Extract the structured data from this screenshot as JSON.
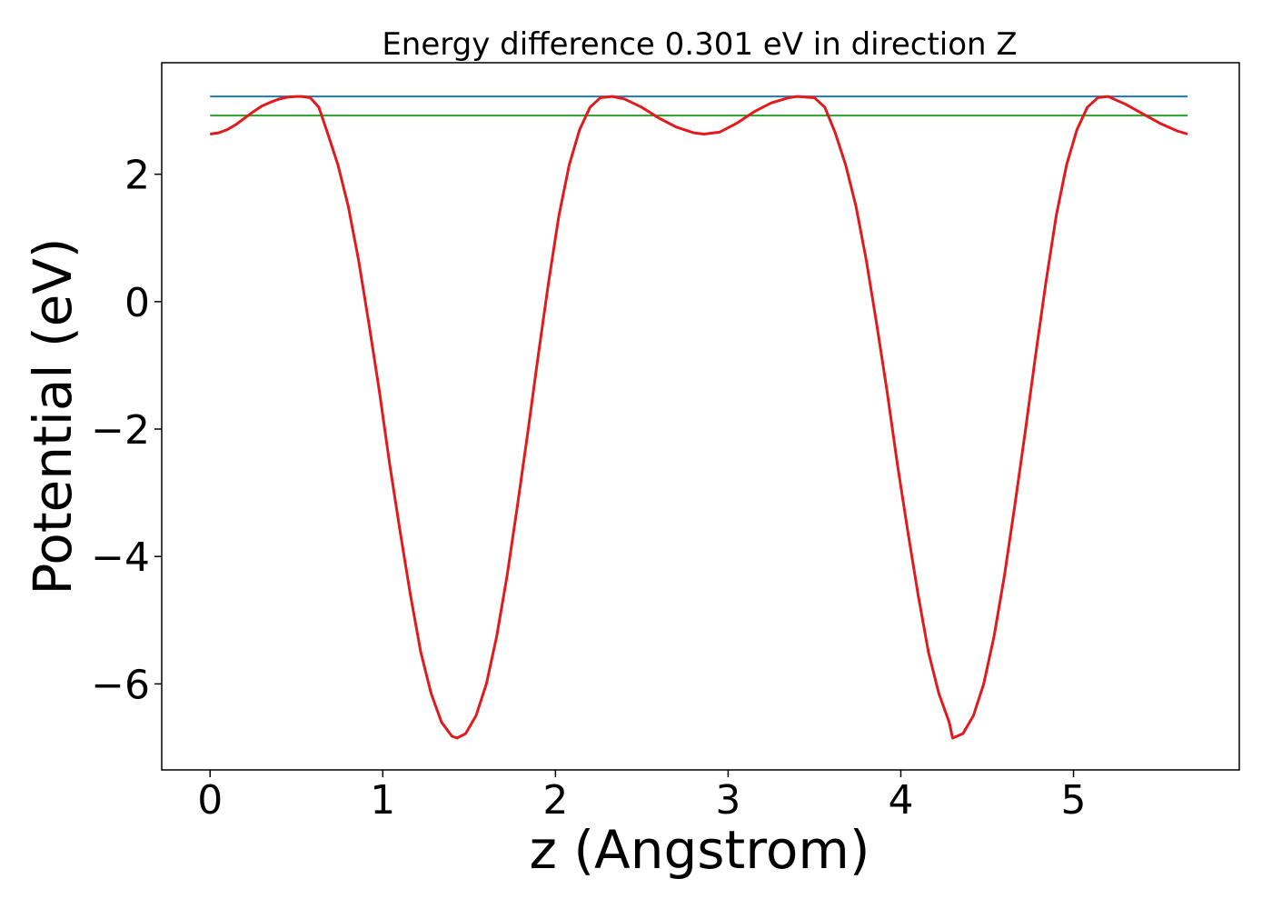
{
  "chart_data": {
    "type": "line",
    "title": "Energy difference 0.301 eV in direction Z",
    "xlabel": "z (Angstrom)",
    "ylabel": "Potential (eV)",
    "xlim": [
      -0.28,
      5.96
    ],
    "ylim": [
      -7.35,
      3.75
    ],
    "xticks": [
      0,
      1,
      2,
      3,
      4,
      5
    ],
    "yticks": [
      2,
      0,
      -2,
      -4,
      -6
    ],
    "xtick_labels": [
      "0",
      "1",
      "2",
      "3",
      "4",
      "5"
    ],
    "ytick_labels": [
      "2",
      "0",
      "−2",
      "−4",
      "−6"
    ],
    "grid": false,
    "series": [
      {
        "color": "#e31a1c",
        "x": [
          0.0,
          0.05,
          0.1,
          0.15,
          0.2,
          0.25,
          0.3,
          0.35,
          0.4,
          0.45,
          0.5,
          0.53,
          0.58,
          0.63,
          0.68,
          0.74,
          0.8,
          0.86,
          0.92,
          0.98,
          1.04,
          1.1,
          1.16,
          1.22,
          1.28,
          1.34,
          1.4,
          1.43,
          1.48,
          1.54,
          1.6,
          1.66,
          1.72,
          1.78,
          1.84,
          1.9,
          1.96,
          2.02,
          2.08,
          2.14,
          2.2,
          2.26,
          2.33,
          2.4,
          2.5,
          2.6,
          2.7,
          2.8,
          2.86,
          2.95,
          3.05,
          3.15,
          3.25,
          3.35,
          3.4,
          3.45,
          3.5,
          3.56,
          3.62,
          3.68,
          3.74,
          3.8,
          3.86,
          3.92,
          3.98,
          4.04,
          4.1,
          4.16,
          4.22,
          4.28,
          4.3,
          4.36,
          4.42,
          4.48,
          4.54,
          4.6,
          4.66,
          4.72,
          4.78,
          4.84,
          4.9,
          4.96,
          5.02,
          5.08,
          5.14,
          5.2,
          5.3,
          5.4,
          5.5,
          5.6,
          5.66
        ],
        "y": [
          2.63,
          2.65,
          2.7,
          2.78,
          2.88,
          2.98,
          3.07,
          3.13,
          3.18,
          3.21,
          3.22,
          3.22,
          3.2,
          3.05,
          2.65,
          2.15,
          1.5,
          0.65,
          -0.35,
          -1.4,
          -2.55,
          -3.6,
          -4.6,
          -5.5,
          -6.15,
          -6.6,
          -6.82,
          -6.85,
          -6.78,
          -6.5,
          -6.0,
          -5.25,
          -4.3,
          -3.2,
          -2.05,
          -0.85,
          0.3,
          1.35,
          2.15,
          2.7,
          3.05,
          3.2,
          3.22,
          3.18,
          3.05,
          2.88,
          2.74,
          2.65,
          2.63,
          2.66,
          2.8,
          2.98,
          3.12,
          3.2,
          3.22,
          3.21,
          3.2,
          3.05,
          2.65,
          2.15,
          1.5,
          0.65,
          -0.35,
          -1.4,
          -2.55,
          -3.6,
          -4.6,
          -5.5,
          -6.15,
          -6.6,
          -6.85,
          -6.78,
          -6.5,
          -6.0,
          -5.25,
          -4.3,
          -3.2,
          -2.05,
          -0.85,
          0.3,
          1.35,
          2.15,
          2.7,
          3.05,
          3.2,
          3.22,
          3.1,
          2.95,
          2.8,
          2.68,
          2.63
        ]
      },
      {
        "color": "#1f77b4",
        "x": [
          0.0,
          5.66
        ],
        "y": [
          3.22,
          3.22
        ]
      },
      {
        "color": "#2ca02c",
        "x": [
          0.0,
          5.66
        ],
        "y": [
          2.92,
          2.92
        ]
      }
    ]
  }
}
